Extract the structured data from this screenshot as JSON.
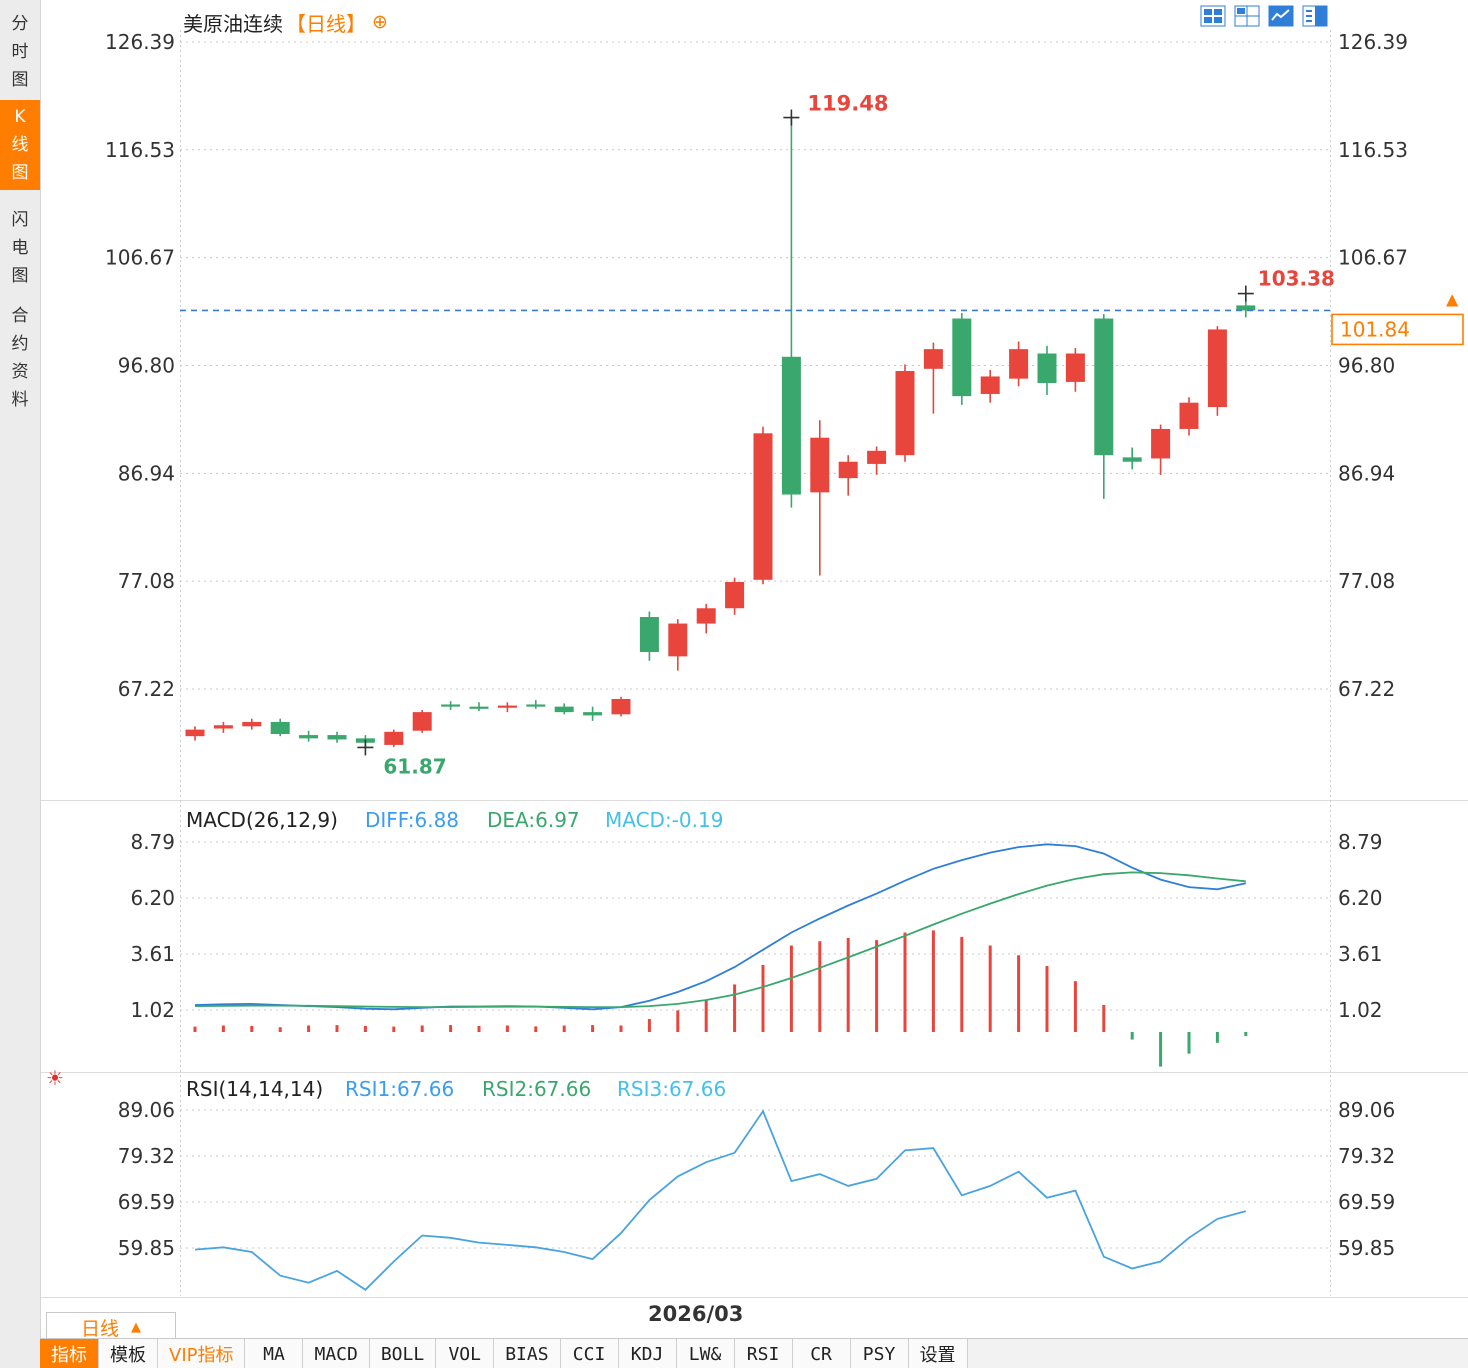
{
  "sidebar": {
    "tabs": [
      {
        "label": "分时图",
        "active": false
      },
      {
        "label": "K线图",
        "active": true
      },
      {
        "label": "闪电图",
        "active": false
      },
      {
        "label": "合约资料",
        "active": false
      }
    ]
  },
  "header": {
    "title": "美原油连续",
    "period_tag": "【日线】",
    "add_icon": "⊕",
    "icons": [
      "multi-window-icon",
      "grid-layout-icon",
      "chart-layout-icon",
      "split-panes-icon"
    ]
  },
  "footer": {
    "period_button": "日线",
    "period_caret": "▲",
    "date_label": "2026/03",
    "menu": [
      {
        "label": "指标",
        "type": "active"
      },
      {
        "label": "模板",
        "type": "normal"
      },
      {
        "label": "VIP指标",
        "type": "vip"
      },
      {
        "label": "MA",
        "type": "mono"
      },
      {
        "label": "MACD",
        "type": "mono"
      },
      {
        "label": "BOLL",
        "type": "mono"
      },
      {
        "label": "VOL",
        "type": "mono"
      },
      {
        "label": "BIAS",
        "type": "mono"
      },
      {
        "label": "CCI",
        "type": "mono"
      },
      {
        "label": "KDJ",
        "type": "mono"
      },
      {
        "label": "LW&",
        "type": "mono"
      },
      {
        "label": "RSI",
        "type": "mono"
      },
      {
        "label": "CR",
        "type": "mono"
      },
      {
        "label": "PSY",
        "type": "mono"
      },
      {
        "label": "设置",
        "type": "normal"
      }
    ]
  },
  "chart_data": [
    {
      "type": "candlestick",
      "title": "美原油连续【日线】",
      "ylabel": "price",
      "y_ticks": [
        126.39,
        116.53,
        106.67,
        96.8,
        86.94,
        77.08,
        67.22
      ],
      "ylim": [
        61.5,
        127.5
      ],
      "grid": "dotted",
      "candles_ohlc": [
        [
          62.9,
          63.8,
          62.5,
          63.5
        ],
        [
          63.6,
          64.2,
          63.2,
          63.9
        ],
        [
          63.8,
          64.5,
          63.5,
          64.2
        ],
        [
          64.2,
          64.5,
          62.9,
          63.1
        ],
        [
          63.0,
          63.4,
          62.4,
          62.7
        ],
        [
          63.0,
          63.3,
          62.3,
          62.6
        ],
        [
          62.7,
          63.0,
          61.87,
          62.3
        ],
        [
          62.1,
          63.5,
          61.9,
          63.3
        ],
        [
          63.4,
          65.3,
          63.2,
          65.1
        ],
        [
          65.8,
          66.1,
          65.3,
          65.6
        ],
        [
          65.6,
          66.0,
          65.2,
          65.4
        ],
        [
          65.5,
          66.0,
          65.1,
          65.7
        ],
        [
          65.8,
          66.2,
          65.4,
          65.6
        ],
        [
          65.6,
          65.9,
          64.9,
          65.1
        ],
        [
          65.1,
          65.6,
          64.3,
          64.8
        ],
        [
          64.9,
          66.5,
          64.7,
          66.3
        ],
        [
          73.8,
          74.3,
          69.8,
          70.6
        ],
        [
          70.2,
          73.6,
          68.9,
          73.2
        ],
        [
          73.2,
          75.0,
          72.3,
          74.6
        ],
        [
          74.6,
          77.4,
          74.0,
          77.0
        ],
        [
          77.2,
          91.2,
          76.8,
          90.6
        ],
        [
          97.6,
          119.48,
          83.8,
          85.0
        ],
        [
          85.2,
          91.8,
          77.6,
          90.2
        ],
        [
          86.5,
          88.6,
          84.9,
          88.0
        ],
        [
          87.8,
          89.4,
          86.8,
          89.0
        ],
        [
          88.6,
          96.9,
          88.0,
          96.3
        ],
        [
          96.5,
          98.9,
          92.4,
          98.3
        ],
        [
          101.1,
          101.6,
          93.2,
          94.0
        ],
        [
          94.2,
          96.4,
          93.4,
          95.8
        ],
        [
          95.6,
          99.0,
          94.9,
          98.3
        ],
        [
          97.9,
          98.6,
          94.1,
          95.2
        ],
        [
          95.3,
          98.4,
          94.4,
          97.9
        ],
        [
          101.1,
          101.5,
          84.6,
          88.6
        ],
        [
          88.4,
          89.3,
          87.3,
          88.0
        ],
        [
          88.3,
          91.4,
          86.8,
          91.0
        ],
        [
          91.0,
          93.9,
          90.4,
          93.4
        ],
        [
          93.0,
          100.4,
          92.2,
          100.1
        ],
        [
          102.3,
          103.38,
          101.2,
          101.84
        ]
      ],
      "annotations": {
        "period_high": "119.48",
        "period_low": "61.87",
        "last_bar_high": "103.38",
        "current_price": "101.84"
      },
      "colors": {
        "up": "#e8453c",
        "down": "#3aa76d",
        "current_price_line": "#3a7bd5",
        "current_price_tag": "#ff7d00",
        "high_label": "#e8453c",
        "low_label": "#3aa76d"
      }
    },
    {
      "type": "line+bar",
      "label": "MACD(26,12,9)",
      "legend": [
        {
          "text": "DIFF:6.88",
          "color": "#3b9cf0"
        },
        {
          "text": "DEA:6.97",
          "color": "#3aa76d"
        },
        {
          "text": "MACD:-0.19",
          "color": "#45c0e8"
        }
      ],
      "y_ticks": [
        8.79,
        6.2,
        3.61,
        1.02
      ],
      "grid": "dotted",
      "series": [
        {
          "name": "DIFF",
          "color": "#2f7ed8",
          "values": [
            1.25,
            1.28,
            1.3,
            1.25,
            1.2,
            1.15,
            1.08,
            1.05,
            1.12,
            1.18,
            1.18,
            1.2,
            1.18,
            1.12,
            1.05,
            1.15,
            1.45,
            1.85,
            2.35,
            3.0,
            3.8,
            4.6,
            5.25,
            5.85,
            6.4,
            7.0,
            7.55,
            7.95,
            8.3,
            8.55,
            8.68,
            8.6,
            8.25,
            7.6,
            7.05,
            6.7,
            6.6,
            6.88
          ]
        },
        {
          "name": "DEA",
          "color": "#3aa76d",
          "values": [
            1.2,
            1.21,
            1.22,
            1.22,
            1.21,
            1.2,
            1.18,
            1.16,
            1.15,
            1.15,
            1.16,
            1.17,
            1.17,
            1.16,
            1.15,
            1.15,
            1.2,
            1.3,
            1.48,
            1.73,
            2.08,
            2.5,
            2.97,
            3.45,
            3.95,
            4.45,
            4.97,
            5.47,
            5.94,
            6.38,
            6.77,
            7.08,
            7.3,
            7.38,
            7.35,
            7.25,
            7.1,
            6.97
          ]
        }
      ],
      "histogram": [
        0.25,
        0.3,
        0.28,
        0.22,
        0.3,
        0.32,
        0.28,
        0.25,
        0.3,
        0.32,
        0.28,
        0.3,
        0.26,
        0.3,
        0.32,
        0.3,
        0.6,
        1.0,
        1.5,
        2.2,
        3.1,
        4.0,
        4.2,
        4.35,
        4.25,
        4.6,
        4.7,
        4.4,
        4.0,
        3.55,
        3.05,
        2.35,
        1.25,
        -0.35,
        -1.6,
        -1.0,
        -0.5,
        -0.19
      ]
    },
    {
      "type": "line",
      "label": "RSI(14,14,14)",
      "legend": [
        {
          "text": "RSI1:67.66",
          "color": "#3b9cf0"
        },
        {
          "text": "RSI2:67.66",
          "color": "#3aa76d"
        },
        {
          "text": "RSI3:67.66",
          "color": "#45c0e8"
        }
      ],
      "y_ticks": [
        89.06,
        79.32,
        69.59,
        59.85
      ],
      "grid": "dotted",
      "series": [
        {
          "name": "RSI1",
          "color": "#4aa3df",
          "values": [
            59.5,
            60.0,
            59.0,
            54.0,
            52.5,
            55.0,
            51.0,
            57.0,
            62.5,
            62.0,
            61.0,
            60.5,
            60.0,
            59.0,
            57.5,
            63.0,
            70.0,
            75.0,
            78.0,
            80.0,
            88.8,
            74.0,
            75.5,
            73.0,
            74.5,
            80.5,
            81.0,
            71.0,
            73.0,
            76.0,
            70.5,
            72.0,
            58.0,
            55.5,
            57.0,
            62.0,
            66.0,
            67.66
          ]
        }
      ],
      "x_axis_label": "2026/03"
    }
  ]
}
